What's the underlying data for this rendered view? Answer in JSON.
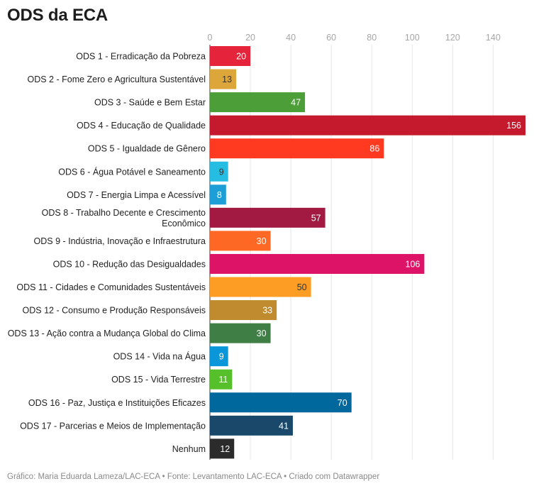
{
  "page": {
    "title": "ODS da ECA",
    "footer": "Gráfico: Maria Eduarda Lameza/LAC-ECA • Fonte: Levantamento LAC-ECA • Criado com Datawrapper"
  },
  "chart_data": {
    "type": "bar",
    "orientation": "horizontal",
    "title": "ODS da ECA",
    "xlabel": "",
    "ylabel": "",
    "xlim": [
      0,
      156
    ],
    "ticks": [
      0,
      20,
      40,
      60,
      80,
      100,
      120,
      140
    ],
    "grid": true,
    "categories": [
      "ODS 1 - Erradicação da Pobreza",
      "ODS 2 - Fome Zero e Agricultura Sustentável",
      "ODS 3 - Saúde e Bem Estar",
      "ODS 4 - Educação de Qualidade",
      "ODS 5 - Igualdade de Gênero",
      "ODS 6 - Água Potável e Saneamento",
      "ODS 7 - Energia Limpa e Acessível",
      "ODS 8 - Trabalho Decente e Crescimento Econômico",
      "ODS 9 - Indústria, Inovação e Infraestrutura",
      "ODS 10 - Redução das Desigualdades",
      "ODS 11 - Cidades e Comunidades Sustentáveis",
      "ODS 12 - Consumo e Produção Responsáveis",
      "ODS 13 - Ação contra a Mudança Global do Clima",
      "ODS 14 - Vida na Água",
      "ODS 15 - Vida Terrestre",
      "ODS 16 - Paz, Justiça e Instituições Eficazes",
      "ODS 17 - Parcerias e Meios de Implementação",
      "Nenhum"
    ],
    "label_lines": [
      [
        "ODS 1 - Erradicação da Pobreza"
      ],
      [
        "ODS 2 - Fome Zero e Agricultura Sustentável"
      ],
      [
        "ODS 3 - Saúde e Bem Estar"
      ],
      [
        "ODS 4 - Educação de Qualidade"
      ],
      [
        "ODS 5 - Igualdade de Gênero"
      ],
      [
        "ODS 6 - Água Potável e Saneamento"
      ],
      [
        "ODS 7 - Energia Limpa e Acessível"
      ],
      [
        "ODS 8 - Trabalho Decente e Crescimento",
        "Econômico"
      ],
      [
        "ODS 9 - Indústria, Inovação e Infraestrutura"
      ],
      [
        "ODS 10 - Redução das Desigualdades"
      ],
      [
        "ODS 11 - Cidades e Comunidades Sustentáveis"
      ],
      [
        "ODS 12 - Consumo e Produção Responsáveis"
      ],
      [
        "ODS 13 - Ação contra a Mudança Global do Clima"
      ],
      [
        "ODS 14 - Vida na Água"
      ],
      [
        "ODS 15 - Vida Terrestre"
      ],
      [
        "ODS 16 - Paz, Justiça e Instituições Eficazes"
      ],
      [
        "ODS 17 - Parcerias e Meios de Implementação"
      ],
      [
        "Nenhum"
      ]
    ],
    "values": [
      20,
      13,
      47,
      156,
      86,
      9,
      8,
      57,
      30,
      106,
      50,
      33,
      30,
      9,
      11,
      70,
      41,
      12
    ],
    "colors": [
      "#e5243b",
      "#dda63a",
      "#4c9f38",
      "#c5192d",
      "#ff3a21",
      "#26bde2",
      "#1e9ed6",
      "#a21942",
      "#fd6925",
      "#dd1367",
      "#fd9d24",
      "#bf8b2e",
      "#3f7e44",
      "#0a97d9",
      "#56c02b",
      "#00689d",
      "#19486a",
      "#2b2b2b"
    ],
    "label_colors": [
      "#ffffff",
      "#333333",
      "#ffffff",
      "#ffffff",
      "#ffffff",
      "#333333",
      "#ffffff",
      "#ffffff",
      "#ffffff",
      "#ffffff",
      "#333333",
      "#ffffff",
      "#ffffff",
      "#ffffff",
      "#ffffff",
      "#ffffff",
      "#ffffff",
      "#ffffff"
    ]
  }
}
